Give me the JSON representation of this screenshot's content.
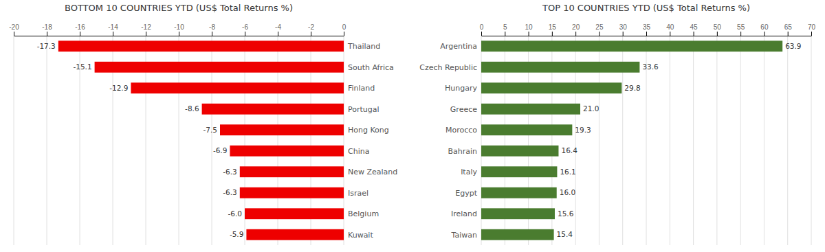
{
  "chart_data": [
    {
      "type": "bar",
      "orientation": "horizontal",
      "title": "BOTTOM 10 COUNTRIES YTD (US$ Total Returns %)",
      "categories": [
        "Thailand",
        "South Africa",
        "Finland",
        "Portugal",
        "Hong Kong",
        "China",
        "New Zealand",
        "Israel",
        "Belgium",
        "Kuwait"
      ],
      "values": [
        -17.3,
        -15.1,
        -12.9,
        -8.6,
        -7.5,
        -6.9,
        -6.3,
        -6.3,
        -6.0,
        -5.9
      ],
      "value_labels": [
        "-17.3",
        "-15.1",
        "-12.9",
        "-8.6",
        "-7.5",
        "-6.9",
        "-6.3",
        "-6.3",
        "-6.0",
        "-5.9"
      ],
      "color": "#ee0000",
      "xlim": [
        -20,
        0
      ],
      "xticks": [
        -20,
        -18,
        -16,
        -14,
        -12,
        -10,
        -8,
        -6,
        -4,
        -2,
        0
      ],
      "grid": true,
      "data_labels": true
    },
    {
      "type": "bar",
      "orientation": "horizontal",
      "title": "TOP 10 COUNTRIES YTD (US$ Total Returns %)",
      "categories": [
        "Argentina",
        "Czech Republic",
        "Hungary",
        "Greece",
        "Morocco",
        "Bahrain",
        "Italy",
        "Egypt",
        "Ireland",
        "Taiwan"
      ],
      "values": [
        63.9,
        33.6,
        29.8,
        21.0,
        19.3,
        16.4,
        16.1,
        16.0,
        15.6,
        15.4
      ],
      "value_labels": [
        "63.9",
        "33.6",
        "29.8",
        "21.0",
        "19.3",
        "16.4",
        "16.1",
        "16.0",
        "15.6",
        "15.4"
      ],
      "color": "#4a7c2f",
      "xlim": [
        0,
        70
      ],
      "xticks": [
        0,
        5,
        10,
        15,
        20,
        25,
        30,
        35,
        40,
        45,
        50,
        55,
        60,
        65,
        70
      ],
      "grid": true,
      "data_labels": true
    }
  ]
}
